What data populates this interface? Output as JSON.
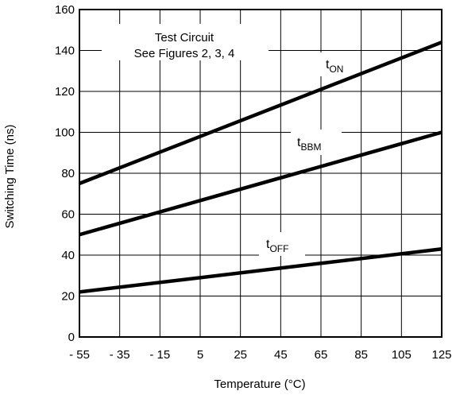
{
  "chart_data": {
    "type": "line",
    "xlabel": "Temperature (°C)",
    "ylabel": "Switching Time (ns)",
    "xlim": [
      -55,
      125
    ],
    "ylim": [
      0,
      160
    ],
    "x_ticks": [
      -55,
      -35,
      -15,
      5,
      25,
      45,
      65,
      85,
      105,
      125
    ],
    "x_tick_labels": [
      "- 55",
      "- 35",
      "- 15",
      "5",
      "25",
      "45",
      "65",
      "85",
      "105",
      "125"
    ],
    "y_ticks": [
      0,
      20,
      40,
      60,
      80,
      100,
      120,
      140,
      160
    ],
    "y_tick_labels": [
      "0",
      "20",
      "40",
      "60",
      "80",
      "100",
      "120",
      "140",
      "160"
    ],
    "grid": true,
    "annotation": {
      "line1": "Test Circuit",
      "line2": "See Figures 2, 3, 4"
    },
    "series": [
      {
        "name_main": "t",
        "name_sub": "ON",
        "x": [
          -55,
          125
        ],
        "y": [
          75,
          144
        ]
      },
      {
        "name_main": "t",
        "name_sub": "BBM",
        "x": [
          -55,
          125
        ],
        "y": [
          50,
          100
        ]
      },
      {
        "name_main": "t",
        "name_sub": "OFF",
        "x": [
          -55,
          125
        ],
        "y": [
          22,
          43
        ]
      }
    ]
  }
}
